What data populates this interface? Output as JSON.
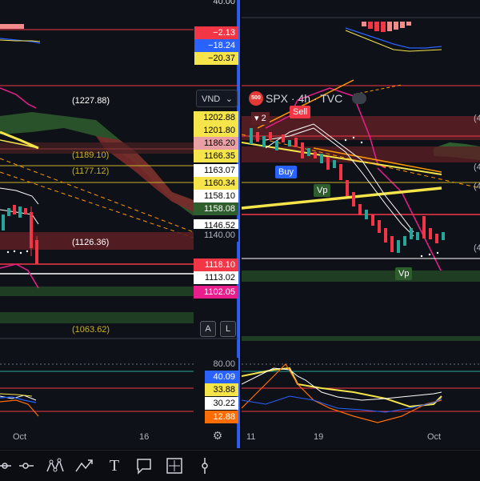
{
  "left_pane": {
    "top_indicator_labels": [
      {
        "value": "40.00",
        "bg": "#0e1117",
        "fg": "#b2b5be"
      },
      {
        "value": "−2.13",
        "bg": "#f23645",
        "fg": "#ffffff"
      },
      {
        "value": "−18.24",
        "bg": "#2962ff",
        "fg": "#ffffff"
      },
      {
        "value": "−20.37",
        "bg": "#f5e44a",
        "fg": "#000000"
      }
    ],
    "currency_select": "VND",
    "price_labels": [
      {
        "value": "1202.88",
        "bg": "#f5e44a",
        "fg": "#000000"
      },
      {
        "value": "1201.80",
        "bg": "#f5e44a",
        "fg": "#000000"
      },
      {
        "value": "1186.20",
        "bg": "#e8a0a4",
        "fg": "#000000"
      },
      {
        "value": "1166.35",
        "bg": "#f5e44a",
        "fg": "#000000"
      },
      {
        "value": "1163.07",
        "bg": "#ffffff",
        "fg": "#000000"
      },
      {
        "value": "1160.34",
        "bg": "#f5e44a",
        "fg": "#000000"
      },
      {
        "value": "1158.10",
        "bg": "#ffffff",
        "fg": "#000000"
      },
      {
        "value": "1158.08",
        "bg": "#2e5e2e",
        "fg": "#ffffff"
      },
      {
        "value": "1146.52",
        "bg": "#ffffff",
        "fg": "#000000"
      },
      {
        "value": "1140.00",
        "bg": "#0e1117",
        "fg": "#b2b5be"
      },
      {
        "value": "1118.10",
        "bg": "#f23645",
        "fg": "#ffffff"
      },
      {
        "value": "1113.02",
        "bg": "#ffffff",
        "fg": "#000000"
      },
      {
        "value": "1102.05",
        "bg": "#e91e8c",
        "fg": "#ffffff"
      }
    ],
    "annotations": [
      "(1227.88)",
      "(1189.10)",
      "(1177.12)",
      "(1126.36)",
      "(1063.62)"
    ],
    "scale_buttons": [
      "A",
      "L"
    ],
    "osc_labels": [
      {
        "value": "80.00",
        "bg": "#0e1117",
        "fg": "#b2b5be"
      },
      {
        "value": "40.09",
        "bg": "#2962ff",
        "fg": "#ffffff"
      },
      {
        "value": "33.88",
        "bg": "#f5e44a",
        "fg": "#000000"
      },
      {
        "value": "30.22",
        "bg": "#ffffff",
        "fg": "#000000"
      },
      {
        "value": "12.88",
        "bg": "#ff6d00",
        "fg": "#ffffff"
      }
    ],
    "x_labels": [
      "Oct",
      "16"
    ]
  },
  "right_pane": {
    "symbol_badge": "500",
    "symbol_title": "SPX · 4h · TVC",
    "signals": [
      "Sell",
      "Buy",
      "Vp",
      "Vp"
    ],
    "position_count": "2",
    "x_labels": [
      "11",
      "19",
      "Oct"
    ],
    "edge_labels": [
      "(4",
      "(4",
      "(4",
      "(4"
    ]
  },
  "toolbar": {
    "tools": [
      "lines-tool-icon",
      "pattern-tool-icon",
      "path-tool-icon",
      "text-tool-icon",
      "callout-tool-icon",
      "measure-tool-icon",
      "vertical-line-tool-icon"
    ],
    "text_tool_label": "T"
  },
  "colors": {
    "bull": "#26a69a",
    "bear": "#f23645",
    "ichimoku_cloud_green": "#2e5e2e",
    "ichimoku_cloud_red": "#7a2a2a",
    "ma_yellow": "#f5e44a",
    "selection_border": "#2962ff"
  }
}
